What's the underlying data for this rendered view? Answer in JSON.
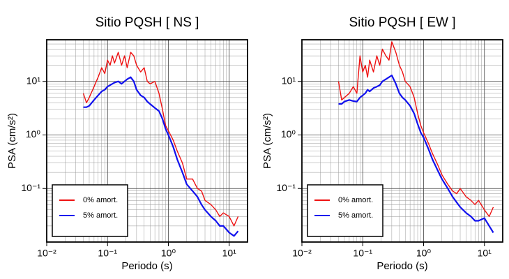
{
  "chart_data": [
    {
      "type": "line",
      "title": "Sitio PQSH [ NS ]",
      "x_label": "Periodo (s)",
      "y_label": "PSA (cm/s²)",
      "x": [
        0.04,
        0.045,
        0.05,
        0.06,
        0.07,
        0.08,
        0.09,
        0.1,
        0.11,
        0.12,
        0.13,
        0.15,
        0.17,
        0.19,
        0.21,
        0.24,
        0.27,
        0.3,
        0.35,
        0.4,
        0.45,
        0.5,
        0.6,
        0.7,
        0.8,
        0.9,
        1.0,
        1.2,
        1.4,
        1.7,
        2.0,
        2.5,
        3,
        3.5,
        4,
        5,
        6,
        7,
        8,
        10,
        12,
        14
      ],
      "series": [
        {
          "name": "0% amort.",
          "color": "#ee1111",
          "values": [
            6,
            4,
            5,
            8,
            12,
            18,
            14,
            25,
            20,
            30,
            22,
            35,
            20,
            30,
            18,
            35,
            30,
            20,
            15,
            18,
            10,
            9,
            10,
            6,
            3,
            1.5,
            1.2,
            0.8,
            0.5,
            0.3,
            0.15,
            0.15,
            0.1,
            0.09,
            0.06,
            0.05,
            0.04,
            0.03,
            0.035,
            0.03,
            0.02,
            0.03
          ]
        },
        {
          "name": "5% amort.",
          "color": "#1111ee",
          "values": [
            3.3,
            3.3,
            3.5,
            4.5,
            5.5,
            6.5,
            7,
            8,
            8.5,
            9,
            9.5,
            10,
            9,
            10,
            11,
            12,
            10,
            7,
            5.5,
            5,
            4.2,
            3.8,
            3.2,
            2.8,
            2,
            1.3,
            1.0,
            0.6,
            0.35,
            0.2,
            0.12,
            0.09,
            0.07,
            0.05,
            0.04,
            0.03,
            0.025,
            0.02,
            0.02,
            0.015,
            0.013,
            0.016
          ]
        }
      ],
      "x_log": true,
      "y_log": true,
      "xlim": [
        0.01,
        20
      ],
      "ylim": [
        0.01,
        60
      ],
      "xticks": [
        {
          "value": 0.01,
          "label": "10⁻²"
        },
        {
          "value": 0.1,
          "label": "10⁻¹"
        },
        {
          "value": 1,
          "label": "10⁰"
        },
        {
          "value": 10,
          "label": "10¹"
        }
      ],
      "yticks": [
        {
          "value": 0.1,
          "label": "10⁻¹"
        },
        {
          "value": 1,
          "label": "10⁰"
        },
        {
          "value": 10,
          "label": "10¹"
        }
      ],
      "grid": true,
      "legend": "lower left"
    },
    {
      "type": "line",
      "title": "Sitio PQSH [ EW ]",
      "x_label": "Periodo (s)",
      "y_label": "PSA (cm/s²)",
      "x": [
        0.04,
        0.045,
        0.05,
        0.06,
        0.07,
        0.08,
        0.09,
        0.1,
        0.11,
        0.12,
        0.13,
        0.15,
        0.17,
        0.19,
        0.21,
        0.24,
        0.27,
        0.3,
        0.35,
        0.4,
        0.45,
        0.5,
        0.6,
        0.7,
        0.8,
        0.9,
        1.0,
        1.2,
        1.4,
        1.7,
        2.0,
        2.5,
        3,
        3.5,
        4,
        5,
        6,
        7,
        8,
        10,
        12,
        14
      ],
      "series": [
        {
          "name": "0% amort.",
          "color": "#ee1111",
          "values": [
            10,
            4.5,
            5,
            6,
            8,
            6,
            30,
            15,
            20,
            12,
            25,
            15,
            30,
            20,
            40,
            30,
            25,
            55,
            35,
            20,
            15,
            10,
            8,
            5,
            2.5,
            1.5,
            1.1,
            0.7,
            0.45,
            0.28,
            0.18,
            0.12,
            0.09,
            0.08,
            0.1,
            0.07,
            0.06,
            0.05,
            0.06,
            0.04,
            0.03,
            0.045
          ]
        },
        {
          "name": "5% amort.",
          "color": "#1111ee",
          "values": [
            3.8,
            3.8,
            4.2,
            4.5,
            4.3,
            4.2,
            5,
            5.5,
            6,
            7,
            6.5,
            7.5,
            8,
            8.5,
            10,
            11,
            12,
            13,
            9,
            6,
            5,
            4.5,
            3.5,
            2.5,
            1.6,
            1.1,
            0.9,
            0.55,
            0.35,
            0.22,
            0.15,
            0.1,
            0.07,
            0.055,
            0.045,
            0.035,
            0.03,
            0.025,
            0.025,
            0.028,
            0.02,
            0.015
          ]
        }
      ],
      "x_log": true,
      "y_log": true,
      "xlim": [
        0.01,
        20
      ],
      "ylim": [
        0.01,
        60
      ],
      "xticks": [
        {
          "value": 0.01,
          "label": "10⁻²"
        },
        {
          "value": 0.1,
          "label": "10⁻¹"
        },
        {
          "value": 1,
          "label": "10⁰"
        },
        {
          "value": 10,
          "label": "10¹"
        }
      ],
      "yticks": [
        {
          "value": 0.1,
          "label": "10⁻¹"
        },
        {
          "value": 1,
          "label": "10⁰"
        },
        {
          "value": 10,
          "label": "10¹"
        }
      ],
      "grid": true,
      "legend": "lower left"
    }
  ]
}
